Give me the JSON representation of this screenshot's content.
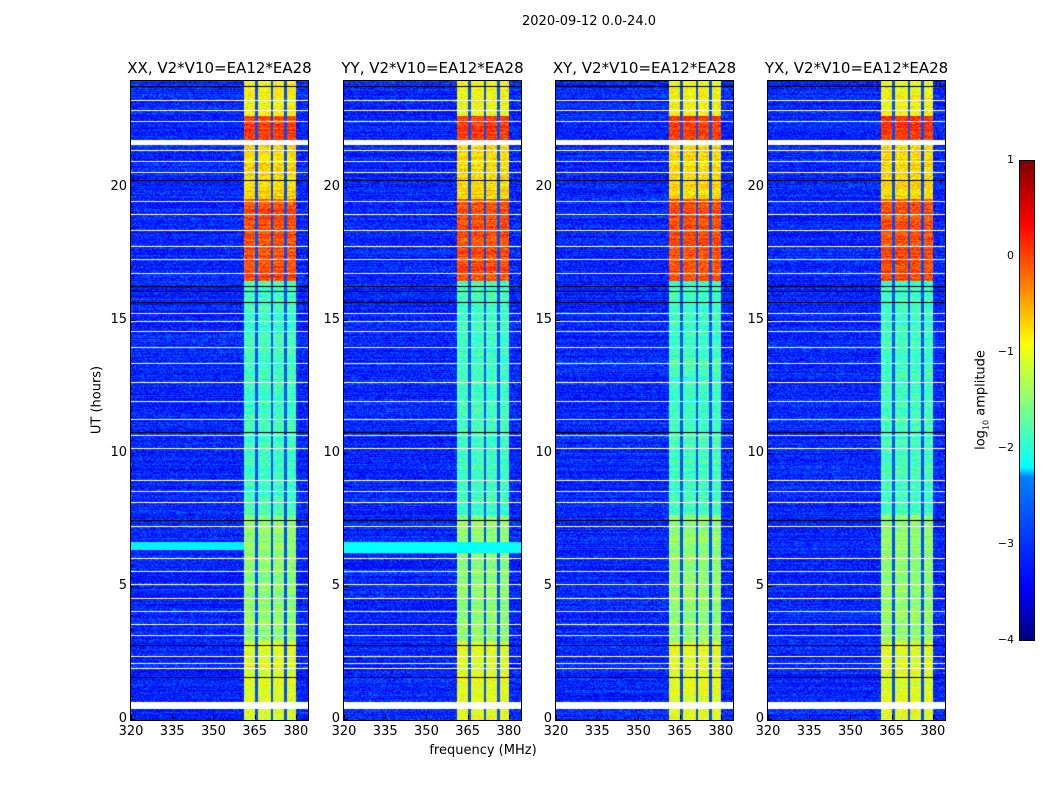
{
  "chart_data": {
    "type": "heatmap",
    "title": "2020-09-12 0.0-24.0",
    "xlabel": "frequency (MHz)",
    "ylabel": "UT (hours)",
    "xlim": [
      320,
      384.4
    ],
    "ylim": [
      0,
      24
    ],
    "xticks": [
      "320",
      "335",
      "350",
      "365",
      "380"
    ],
    "yticks": [
      "0",
      "5",
      "10",
      "15",
      "20"
    ],
    "panels": [
      {
        "title": "XX, V2*V10=EA12*EA28"
      },
      {
        "title": "YY, V2*V10=EA12*EA28"
      },
      {
        "title": "XY, V2*V10=EA12*EA28"
      },
      {
        "title": "YX, V2*V10=EA12*EA28"
      }
    ],
    "colorbar": {
      "label": "log10 amplitude",
      "label_main": "log",
      "label_sub": "10",
      "label_rest": " amplitude",
      "range": [
        -4,
        1
      ],
      "ticks": [
        "1",
        "0",
        "−1",
        "−2",
        "−3",
        "−4"
      ],
      "colormap": "jet"
    },
    "background_level": -3.2,
    "rfi_band_mhz": [
      361,
      380
    ],
    "band_gaps_mhz": [
      365.5,
      371,
      376
    ],
    "band_levels": [
      {
        "t": [
          0,
          3
        ],
        "level": -1.0
      },
      {
        "t": [
          3,
          7.7
        ],
        "level": -1.4
      },
      {
        "t": [
          7.7,
          16.5
        ],
        "level": -1.8
      },
      {
        "t": [
          16.5,
          19.6
        ],
        "level": 0.0
      },
      {
        "t": [
          19.6,
          21.6
        ],
        "level": -0.7
      },
      {
        "t": [
          21.6,
          22.7
        ],
        "level": 0.1
      },
      {
        "t": [
          22.7,
          24
        ],
        "level": -0.9
      }
    ],
    "flagged_rows_hours": [
      0.55,
      0.62,
      1.95,
      2.15,
      2.4,
      3.2,
      3.6,
      4.1,
      4.6,
      5.1,
      5.6,
      6.1,
      7.3,
      8.2,
      8.6,
      9.0,
      10.2,
      10.7,
      11.3,
      12.0,
      12.7,
      13.4,
      14.0,
      14.6,
      15.0,
      15.3,
      16.8,
      17.3,
      17.8,
      18.4,
      19.0,
      19.5,
      20.6,
      21.0,
      21.4,
      21.75,
      22.5,
      22.9,
      23.3
    ],
    "blank_rows_hours": [
      1.6,
      2.8,
      7.5,
      10.8,
      15.7,
      16.1,
      16.3,
      20.3,
      23.8
    ]
  }
}
